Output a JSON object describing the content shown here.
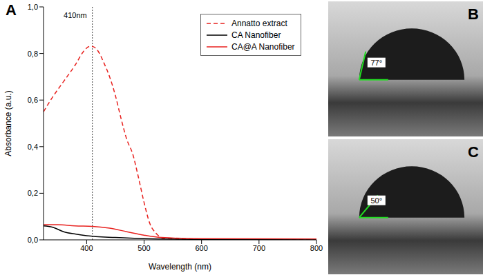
{
  "chart_data": {
    "type": "line",
    "title": "A",
    "x_label": "Wavelength (nm)",
    "y_label": "Absorbance (a.u.)",
    "xlim": [
      325,
      800
    ],
    "xticks": [
      400,
      500,
      600,
      700,
      800
    ],
    "ylim": [
      0,
      1.0
    ],
    "yticks": [
      {
        "value": 0,
        "label": "0,0"
      },
      {
        "value": 0.2,
        "label": "0,2"
      },
      {
        "value": 0.4,
        "label": "0,4"
      },
      {
        "value": 0.6,
        "label": "0,6"
      },
      {
        "value": 0.8,
        "label": "0,8"
      },
      {
        "value": 1.0,
        "label": "1,0"
      }
    ],
    "grid": false,
    "legend": "top-right",
    "annotations": [
      {
        "x": 410,
        "label": "410nm",
        "line_style": "dotted"
      }
    ],
    "series": [
      {
        "name": "Annatto extract",
        "color": "#e8211e",
        "line_style": "dashed",
        "x": [
          325,
          340,
          360,
          380,
          395,
          405,
          410,
          420,
          430,
          440,
          450,
          460,
          470,
          480,
          490,
          500,
          510,
          520,
          530,
          540,
          600,
          700,
          800
        ],
        "values": [
          0.55,
          0.61,
          0.68,
          0.75,
          0.81,
          0.83,
          0.83,
          0.81,
          0.76,
          0.7,
          0.62,
          0.52,
          0.43,
          0.37,
          0.27,
          0.16,
          0.07,
          0.03,
          0.01,
          0.005,
          0.003,
          0.002,
          0.0
        ]
      },
      {
        "name": "CA Nanofiber",
        "color": "#000000",
        "line_style": "solid",
        "x": [
          325,
          340,
          360,
          380,
          400,
          450,
          500,
          600,
          800
        ],
        "values": [
          0.06,
          0.055,
          0.035,
          0.025,
          0.018,
          0.01,
          0.005,
          0.002,
          0.0
        ]
      },
      {
        "name": "CA@A Nanofiber",
        "color": "#e8211e",
        "line_style": "solid",
        "x": [
          325,
          350,
          380,
          410,
          440,
          470,
          500,
          530,
          600,
          800
        ],
        "values": [
          0.065,
          0.065,
          0.06,
          0.058,
          0.05,
          0.035,
          0.02,
          0.01,
          0.005,
          0.004
        ]
      }
    ]
  },
  "images": [
    {
      "label": "B",
      "contact_angle": 77,
      "angle_label": "77°"
    },
    {
      "label": "C",
      "contact_angle": 50,
      "angle_label": "50°"
    }
  ]
}
